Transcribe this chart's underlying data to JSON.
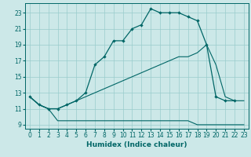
{
  "xlabel": "Humidex (Indice chaleur)",
  "background_color": "#cce8e8",
  "grid_color": "#99cccc",
  "line_color": "#006666",
  "xlim": [
    -0.5,
    23.5
  ],
  "ylim": [
    8.5,
    24.2
  ],
  "xticks": [
    0,
    1,
    2,
    3,
    4,
    5,
    6,
    7,
    8,
    9,
    10,
    11,
    12,
    13,
    14,
    15,
    16,
    17,
    18,
    19,
    20,
    21,
    22,
    23
  ],
  "yticks": [
    9,
    11,
    13,
    15,
    17,
    19,
    21,
    23
  ],
  "line1_x": [
    0,
    1,
    2,
    3,
    4,
    5,
    6,
    7,
    8,
    9,
    10,
    11,
    12,
    13,
    14,
    15,
    16,
    17,
    18,
    19,
    20,
    21,
    22
  ],
  "line1_y": [
    12.5,
    11.5,
    11.0,
    11.0,
    11.5,
    12.0,
    13.0,
    16.5,
    17.5,
    19.5,
    19.5,
    21.0,
    21.5,
    23.5,
    23.0,
    23.0,
    23.0,
    22.5,
    22.0,
    19.0,
    12.5,
    12.0,
    12.0
  ],
  "line2_x": [
    0,
    1,
    2,
    3,
    4,
    5,
    6,
    7,
    8,
    9,
    10,
    11,
    12,
    13,
    14,
    15,
    16,
    17,
    18,
    19,
    20,
    21,
    22,
    23
  ],
  "line2_y": [
    12.5,
    11.5,
    11.0,
    9.5,
    9.5,
    9.5,
    9.5,
    9.5,
    9.5,
    9.5,
    9.5,
    9.5,
    9.5,
    9.5,
    9.5,
    9.5,
    9.5,
    9.5,
    9.0,
    9.0,
    9.0,
    9.0,
    9.0,
    9.0
  ],
  "line3_x": [
    0,
    1,
    2,
    3,
    4,
    5,
    6,
    7,
    8,
    9,
    10,
    11,
    12,
    13,
    14,
    15,
    16,
    17,
    18,
    19,
    20,
    21,
    22,
    23
  ],
  "line3_y": [
    12.5,
    11.5,
    11.0,
    11.0,
    11.5,
    12.0,
    12.5,
    13.0,
    13.5,
    14.0,
    14.5,
    15.0,
    15.5,
    16.0,
    16.5,
    17.0,
    17.5,
    17.5,
    18.0,
    19.0,
    16.5,
    12.5,
    12.0,
    12.0
  ]
}
